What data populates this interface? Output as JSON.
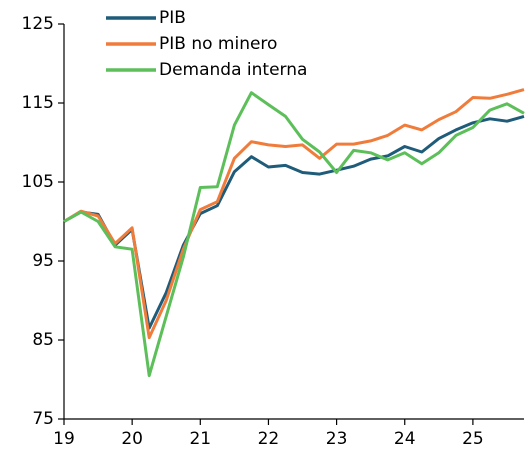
{
  "chart_data": {
    "type": "line",
    "x": [
      19,
      19.25,
      19.5,
      19.75,
      20,
      20.25,
      20.5,
      20.75,
      21,
      21.25,
      21.5,
      21.75,
      22,
      22.25,
      22.5,
      22.75,
      23,
      23.25,
      23.5,
      23.75,
      24,
      24.25,
      24.5,
      24.75,
      25,
      25.25,
      25.5,
      25.75
    ],
    "series": [
      {
        "name": "PIB",
        "color": "#1f5c7a",
        "values": [
          100,
          101.2,
          100.9,
          97,
          99,
          86.5,
          91,
          97,
          101,
          102,
          106.3,
          108.2,
          106.9,
          107.1,
          106.2,
          106,
          106.5,
          107,
          107.9,
          108.3,
          109.5,
          108.8,
          110.5,
          111.6,
          112.5,
          113,
          112.7,
          113.3
        ]
      },
      {
        "name": "PIB no minero",
        "color": "#f07c3c",
        "values": [
          100,
          101.3,
          100.7,
          97.2,
          99.2,
          85.3,
          90,
          96.5,
          101.5,
          102.5,
          108,
          110.1,
          109.7,
          109.5,
          109.7,
          108,
          109.8,
          109.8,
          110.2,
          110.9,
          112.2,
          111.6,
          112.9,
          113.9,
          115.7,
          115.6,
          116.1,
          116.7
        ]
      },
      {
        "name": "Demanda interna",
        "color": "#5cbf5a",
        "values": [
          100,
          101.2,
          100,
          96.8,
          96.5,
          80.5,
          88,
          95.5,
          104.3,
          104.4,
          112.2,
          116.3,
          114.8,
          113.3,
          110.4,
          108.8,
          106.2,
          109,
          108.7,
          107.8,
          108.7,
          107.3,
          108.7,
          110.9,
          111.9,
          114.1,
          114.9,
          113.7
        ]
      }
    ],
    "xlim": [
      19,
      25.75
    ],
    "xticks": [
      19,
      20,
      21,
      22,
      23,
      24,
      25
    ],
    "ylim": [
      75,
      125
    ],
    "yticks": [
      75,
      85,
      95,
      105,
      115,
      125
    ],
    "legend": "upper left",
    "grid": false
  }
}
